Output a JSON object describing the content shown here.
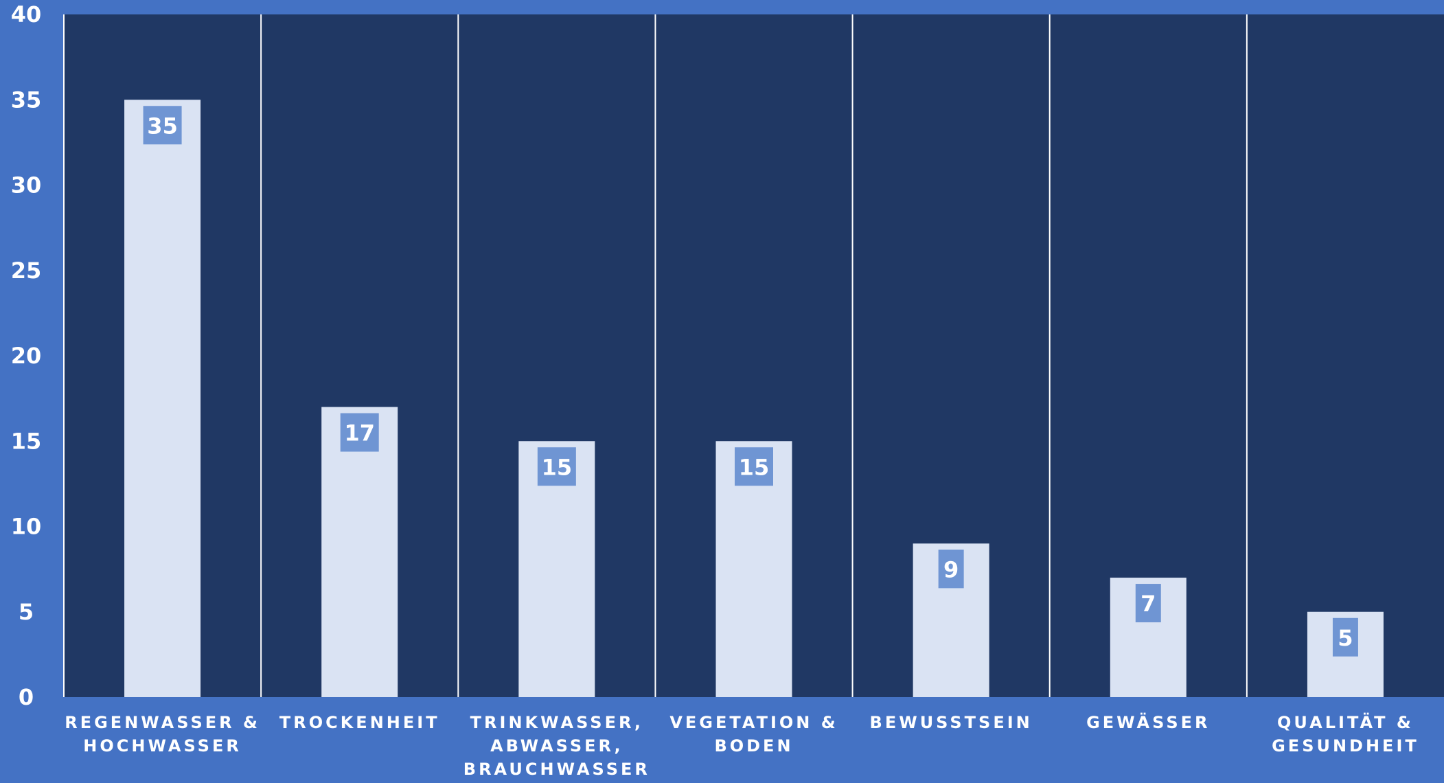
{
  "colors": {
    "background": "#4472C4",
    "plot_area": "#203864",
    "bar": "#DAE3F3",
    "data_label_box": "#6F95D3",
    "text": "#FFFFFF",
    "divider": "#FFFFFF"
  },
  "chart_data": {
    "type": "bar",
    "title": "",
    "xlabel": "",
    "ylabel": "",
    "ylim": [
      0,
      40
    ],
    "yticks": [
      0,
      5,
      10,
      15,
      20,
      25,
      30,
      35,
      40
    ],
    "grid": false,
    "legend": "none",
    "categories": [
      [
        "REGENWASSER &",
        "HOCHWASSER"
      ],
      [
        "TROCKENHEIT"
      ],
      [
        "TRINKWASSER,",
        "ABWASSER,",
        "BRAUCHWASSER"
      ],
      [
        "VEGETATION &",
        "BODEN"
      ],
      [
        "BEWUSSTSEIN"
      ],
      [
        "GEWÄSSER"
      ],
      [
        "QUALITÄT &",
        "GESUNDHEIT"
      ]
    ],
    "values": [
      35,
      17,
      15,
      15,
      9,
      7,
      5
    ]
  }
}
